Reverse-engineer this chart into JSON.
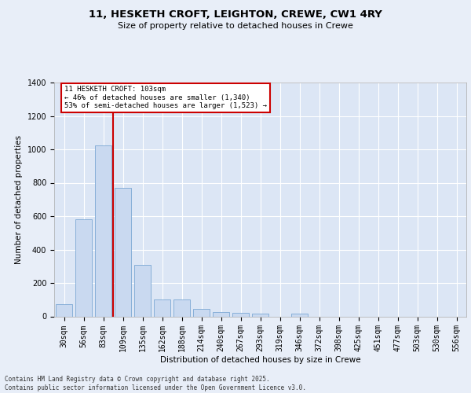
{
  "title_line1": "11, HESKETH CROFT, LEIGHTON, CREWE, CW1 4RY",
  "title_line2": "Size of property relative to detached houses in Crewe",
  "xlabel": "Distribution of detached houses by size in Crewe",
  "ylabel": "Number of detached properties",
  "categories": [
    "30sqm",
    "56sqm",
    "83sqm",
    "109sqm",
    "135sqm",
    "162sqm",
    "188sqm",
    "214sqm",
    "240sqm",
    "267sqm",
    "293sqm",
    "319sqm",
    "346sqm",
    "372sqm",
    "398sqm",
    "425sqm",
    "451sqm",
    "477sqm",
    "503sqm",
    "530sqm",
    "556sqm"
  ],
  "values": [
    75,
    580,
    1025,
    770,
    310,
    100,
    100,
    45,
    25,
    20,
    15,
    0,
    18,
    0,
    0,
    0,
    0,
    0,
    0,
    0,
    0
  ],
  "bar_color": "#c9d9f0",
  "bar_edge_color": "#7ba7d4",
  "vline_color": "#cc0000",
  "vline_x": 2.5,
  "annotation_text": "11 HESKETH CROFT: 103sqm\n← 46% of detached houses are smaller (1,340)\n53% of semi-detached houses are larger (1,523) →",
  "annotation_box_edgecolor": "#cc0000",
  "annotation_bg": "#ffffff",
  "footer_text": "Contains HM Land Registry data © Crown copyright and database right 2025.\nContains public sector information licensed under the Open Government Licence v3.0.",
  "background_color": "#e8eef8",
  "plot_bg_color": "#dce6f5",
  "ylim": [
    0,
    1400
  ],
  "yticks": [
    0,
    200,
    400,
    600,
    800,
    1000,
    1200,
    1400
  ],
  "title1_fontsize": 9.5,
  "title2_fontsize": 8,
  "tick_fontsize": 7,
  "ylabel_fontsize": 7.5,
  "xlabel_fontsize": 7.5,
  "footer_fontsize": 5.5
}
